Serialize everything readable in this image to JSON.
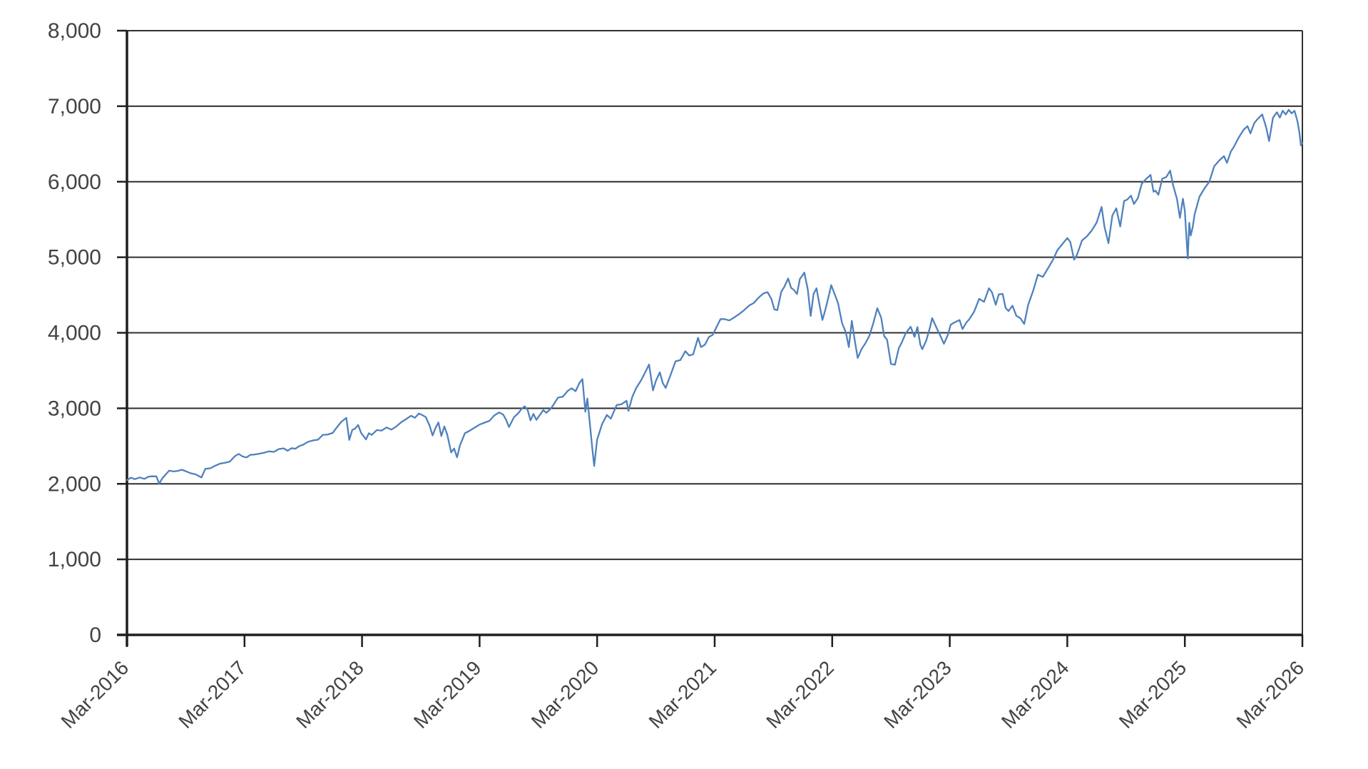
{
  "chart_data": {
    "type": "line",
    "legend": "none",
    "grid": "horizontal-gridlines",
    "plot_frame": "closed-box",
    "colors": {
      "line": "#4f81bd",
      "gridline": "#2f2f2f",
      "axis": "#1f1f1f",
      "label": "#434343",
      "plot_background": "#ffffff"
    },
    "x_axis": {
      "tick_labels": [
        "Mar-2016",
        "Mar-2017",
        "Mar-2018",
        "Mar-2019",
        "Mar-2020",
        "Mar-2021",
        "Mar-2022",
        "Mar-2023",
        "Mar-2024",
        "Mar-2025",
        "Mar-2026"
      ],
      "tick_positions_months": [
        0,
        12,
        24,
        36,
        48,
        60,
        72,
        84,
        96,
        108,
        120
      ],
      "range_months": [
        0,
        120
      ],
      "label_rotation_deg": -45
    },
    "y_axis": {
      "tick_labels": [
        "0",
        "1,000",
        "2,000",
        "3,000",
        "4,000",
        "5,000",
        "6,000",
        "7,000",
        "8,000"
      ],
      "tick_values": [
        0,
        1000,
        2000,
        3000,
        4000,
        5000,
        6000,
        7000,
        8000
      ],
      "range": [
        0,
        8000
      ]
    },
    "series": [
      {
        "color": "#4f81bd",
        "points": [
          [
            0,
            2050
          ],
          [
            0.4,
            2082
          ],
          [
            0.8,
            2062
          ],
          [
            1.3,
            2085
          ],
          [
            1.8,
            2066
          ],
          [
            2.2,
            2095
          ],
          [
            2.6,
            2100
          ],
          [
            3.0,
            2099
          ],
          [
            3.3,
            2001
          ],
          [
            3.6,
            2071
          ],
          [
            4.0,
            2130
          ],
          [
            4.3,
            2174
          ],
          [
            4.8,
            2164
          ],
          [
            5.2,
            2171
          ],
          [
            5.6,
            2187
          ],
          [
            6.0,
            2168
          ],
          [
            6.5,
            2140
          ],
          [
            7.0,
            2126
          ],
          [
            7.6,
            2085
          ],
          [
            8.0,
            2199
          ],
          [
            8.5,
            2205
          ],
          [
            9.0,
            2239
          ],
          [
            9.5,
            2268
          ],
          [
            10.0,
            2279
          ],
          [
            10.5,
            2294
          ],
          [
            11.0,
            2364
          ],
          [
            11.4,
            2396
          ],
          [
            11.8,
            2363
          ],
          [
            12.2,
            2349
          ],
          [
            12.6,
            2384
          ],
          [
            13.0,
            2388
          ],
          [
            13.5,
            2399
          ],
          [
            14.0,
            2412
          ],
          [
            14.5,
            2430
          ],
          [
            15.0,
            2423
          ],
          [
            15.5,
            2460
          ],
          [
            16.0,
            2470
          ],
          [
            16.4,
            2438
          ],
          [
            16.8,
            2472
          ],
          [
            17.2,
            2465
          ],
          [
            17.6,
            2500
          ],
          [
            18.0,
            2519
          ],
          [
            18.5,
            2557
          ],
          [
            19.0,
            2575
          ],
          [
            19.5,
            2584
          ],
          [
            20.0,
            2648
          ],
          [
            20.5,
            2653
          ],
          [
            21.0,
            2674
          ],
          [
            21.4,
            2743
          ],
          [
            21.9,
            2824
          ],
          [
            22.4,
            2873
          ],
          [
            22.7,
            2581
          ],
          [
            23.0,
            2714
          ],
          [
            23.3,
            2732
          ],
          [
            23.6,
            2780
          ],
          [
            23.9,
            2677
          ],
          [
            24.1,
            2641
          ],
          [
            24.4,
            2588
          ],
          [
            24.7,
            2670
          ],
          [
            25.0,
            2648
          ],
          [
            25.5,
            2712
          ],
          [
            26.0,
            2705
          ],
          [
            26.5,
            2747
          ],
          [
            27.0,
            2718
          ],
          [
            27.5,
            2760
          ],
          [
            28.0,
            2816
          ],
          [
            28.5,
            2857
          ],
          [
            29.0,
            2902
          ],
          [
            29.4,
            2875
          ],
          [
            29.8,
            2931
          ],
          [
            30.1,
            2914
          ],
          [
            30.5,
            2885
          ],
          [
            30.9,
            2768
          ],
          [
            31.2,
            2641
          ],
          [
            31.5,
            2740
          ],
          [
            31.8,
            2813
          ],
          [
            32.1,
            2633
          ],
          [
            32.4,
            2760
          ],
          [
            32.7,
            2650
          ],
          [
            33.1,
            2416
          ],
          [
            33.4,
            2468
          ],
          [
            33.7,
            2351
          ],
          [
            34.0,
            2510
          ],
          [
            34.5,
            2670
          ],
          [
            35.0,
            2704
          ],
          [
            35.5,
            2745
          ],
          [
            36.0,
            2784
          ],
          [
            36.5,
            2810
          ],
          [
            37.0,
            2834
          ],
          [
            37.5,
            2905
          ],
          [
            38.0,
            2946
          ],
          [
            38.4,
            2918
          ],
          [
            38.7,
            2850
          ],
          [
            39.0,
            2752
          ],
          [
            39.5,
            2880
          ],
          [
            40.0,
            2942
          ],
          [
            40.3,
            2995
          ],
          [
            40.6,
            3026
          ],
          [
            40.9,
            2980
          ],
          [
            41.2,
            2840
          ],
          [
            41.5,
            2926
          ],
          [
            41.8,
            2847
          ],
          [
            42.2,
            2920
          ],
          [
            42.5,
            2977
          ],
          [
            42.8,
            2940
          ],
          [
            43.2,
            2986
          ],
          [
            43.5,
            3038
          ],
          [
            44.0,
            3141
          ],
          [
            44.5,
            3154
          ],
          [
            45.0,
            3231
          ],
          [
            45.4,
            3265
          ],
          [
            45.8,
            3226
          ],
          [
            46.2,
            3338
          ],
          [
            46.5,
            3386
          ],
          [
            46.8,
            2954
          ],
          [
            47.0,
            3130
          ],
          [
            47.3,
            2741
          ],
          [
            47.5,
            2480
          ],
          [
            47.7,
            2237
          ],
          [
            48.0,
            2585
          ],
          [
            48.5,
            2790
          ],
          [
            49.0,
            2912
          ],
          [
            49.4,
            2863
          ],
          [
            50.0,
            3044
          ],
          [
            50.5,
            3055
          ],
          [
            51.0,
            3100
          ],
          [
            51.2,
            2966
          ],
          [
            51.6,
            3155
          ],
          [
            52.0,
            3271
          ],
          [
            52.5,
            3373
          ],
          [
            53.0,
            3500
          ],
          [
            53.3,
            3580
          ],
          [
            53.7,
            3237
          ],
          [
            54.0,
            3363
          ],
          [
            54.4,
            3477
          ],
          [
            54.7,
            3335
          ],
          [
            55.0,
            3270
          ],
          [
            55.5,
            3443
          ],
          [
            56.0,
            3622
          ],
          [
            56.5,
            3638
          ],
          [
            57.0,
            3756
          ],
          [
            57.4,
            3700
          ],
          [
            57.8,
            3714
          ],
          [
            58.3,
            3934
          ],
          [
            58.6,
            3811
          ],
          [
            59.0,
            3841
          ],
          [
            59.4,
            3943
          ],
          [
            59.8,
            3973
          ],
          [
            60.2,
            4077
          ],
          [
            60.6,
            4181
          ],
          [
            61.0,
            4181
          ],
          [
            61.5,
            4163
          ],
          [
            62.0,
            4204
          ],
          [
            62.5,
            4247
          ],
          [
            63.0,
            4298
          ],
          [
            63.5,
            4360
          ],
          [
            64.0,
            4395
          ],
          [
            64.5,
            4468
          ],
          [
            65.0,
            4523
          ],
          [
            65.4,
            4537
          ],
          [
            65.8,
            4443
          ],
          [
            66.1,
            4308
          ],
          [
            66.4,
            4300
          ],
          [
            66.8,
            4544
          ],
          [
            67.1,
            4605
          ],
          [
            67.5,
            4719
          ],
          [
            67.8,
            4595
          ],
          [
            68.1,
            4567
          ],
          [
            68.4,
            4513
          ],
          [
            68.7,
            4713
          ],
          [
            69.0,
            4766
          ],
          [
            69.15,
            4797
          ],
          [
            69.5,
            4577
          ],
          [
            69.8,
            4223
          ],
          [
            70.1,
            4516
          ],
          [
            70.4,
            4589
          ],
          [
            70.7,
            4374
          ],
          [
            71.0,
            4170
          ],
          [
            71.3,
            4305
          ],
          [
            71.6,
            4463
          ],
          [
            71.9,
            4631
          ],
          [
            72.2,
            4530
          ],
          [
            72.6,
            4392
          ],
          [
            73.0,
            4132
          ],
          [
            73.4,
            4001
          ],
          [
            73.7,
            3810
          ],
          [
            74.0,
            4158
          ],
          [
            74.3,
            3901
          ],
          [
            74.6,
            3667
          ],
          [
            75.0,
            3785
          ],
          [
            75.4,
            3863
          ],
          [
            75.8,
            3962
          ],
          [
            76.2,
            4130
          ],
          [
            76.6,
            4325
          ],
          [
            77.0,
            4199
          ],
          [
            77.3,
            3955
          ],
          [
            77.6,
            3908
          ],
          [
            78.0,
            3586
          ],
          [
            78.4,
            3577
          ],
          [
            78.8,
            3797
          ],
          [
            79.1,
            3872
          ],
          [
            79.5,
            3992
          ],
          [
            80.0,
            4080
          ],
          [
            80.4,
            3946
          ],
          [
            80.7,
            4076
          ],
          [
            81.0,
            3840
          ],
          [
            81.2,
            3783
          ],
          [
            81.6,
            3895
          ],
          [
            82.0,
            4077
          ],
          [
            82.2,
            4195
          ],
          [
            82.6,
            4080
          ],
          [
            83.0,
            3970
          ],
          [
            83.4,
            3855
          ],
          [
            83.8,
            3971
          ],
          [
            84.1,
            4109
          ],
          [
            84.5,
            4138
          ],
          [
            85.0,
            4169
          ],
          [
            85.3,
            4049
          ],
          [
            85.7,
            4136
          ],
          [
            86.0,
            4180
          ],
          [
            86.5,
            4282
          ],
          [
            87.0,
            4450
          ],
          [
            87.5,
            4410
          ],
          [
            88.0,
            4589
          ],
          [
            88.3,
            4537
          ],
          [
            88.7,
            4370
          ],
          [
            89.0,
            4508
          ],
          [
            89.4,
            4515
          ],
          [
            89.7,
            4330
          ],
          [
            90.0,
            4288
          ],
          [
            90.4,
            4358
          ],
          [
            90.8,
            4224
          ],
          [
            91.2,
            4194
          ],
          [
            91.6,
            4117
          ],
          [
            92.0,
            4368
          ],
          [
            92.5,
            4550
          ],
          [
            93.0,
            4770
          ],
          [
            93.5,
            4740
          ],
          [
            94.0,
            4846
          ],
          [
            94.5,
            4958
          ],
          [
            95.0,
            5096
          ],
          [
            95.5,
            5175
          ],
          [
            96.0,
            5254
          ],
          [
            96.3,
            5205
          ],
          [
            96.7,
            4967
          ],
          [
            97.0,
            5036
          ],
          [
            97.5,
            5222
          ],
          [
            98.0,
            5278
          ],
          [
            98.5,
            5354
          ],
          [
            99.0,
            5460
          ],
          [
            99.5,
            5667
          ],
          [
            99.8,
            5399
          ],
          [
            100.2,
            5186
          ],
          [
            100.6,
            5554
          ],
          [
            101.0,
            5648
          ],
          [
            101.4,
            5408
          ],
          [
            101.8,
            5745
          ],
          [
            102.1,
            5762
          ],
          [
            102.5,
            5815
          ],
          [
            102.8,
            5705
          ],
          [
            103.2,
            5782
          ],
          [
            103.6,
            5973
          ],
          [
            104.0,
            6032
          ],
          [
            104.5,
            6090
          ],
          [
            104.8,
            5867
          ],
          [
            105.0,
            5882
          ],
          [
            105.3,
            5828
          ],
          [
            105.7,
            6041
          ],
          [
            106.1,
            6061
          ],
          [
            106.5,
            6147
          ],
          [
            106.8,
            5955
          ],
          [
            107.2,
            5770
          ],
          [
            107.5,
            5521
          ],
          [
            107.8,
            5776
          ],
          [
            108.0,
            5612
          ],
          [
            108.3,
            4983
          ],
          [
            108.45,
            5456
          ],
          [
            108.6,
            5287
          ],
          [
            108.8,
            5397
          ],
          [
            109.0,
            5569
          ],
          [
            109.5,
            5803
          ],
          [
            110.0,
            5912
          ],
          [
            110.5,
            6000
          ],
          [
            111.0,
            6205
          ],
          [
            111.5,
            6280
          ],
          [
            112.0,
            6339
          ],
          [
            112.3,
            6250
          ],
          [
            112.7,
            6400
          ],
          [
            113.0,
            6460
          ],
          [
            113.5,
            6584
          ],
          [
            114.0,
            6688
          ],
          [
            114.4,
            6735
          ],
          [
            114.7,
            6640
          ],
          [
            115.1,
            6780
          ],
          [
            115.5,
            6840
          ],
          [
            115.9,
            6891
          ],
          [
            116.3,
            6720
          ],
          [
            116.6,
            6538
          ],
          [
            117.0,
            6849
          ],
          [
            117.4,
            6920
          ],
          [
            117.7,
            6850
          ],
          [
            118.0,
            6940
          ],
          [
            118.3,
            6890
          ],
          [
            118.6,
            6952
          ],
          [
            118.9,
            6905
          ],
          [
            119.2,
            6938
          ],
          [
            119.5,
            6800
          ],
          [
            119.7,
            6650
          ],
          [
            119.85,
            6480
          ],
          [
            120,
            6515
          ]
        ]
      }
    ]
  }
}
